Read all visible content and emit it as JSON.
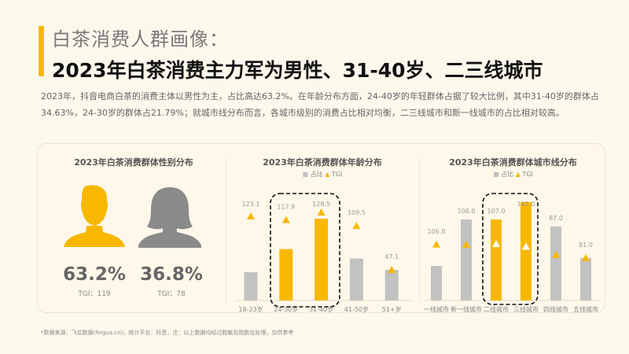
{
  "header": {
    "subtitle": "白茶消费人群画像：",
    "title": "2023年白茶消费主力军为男性、31-40岁、二三线城市",
    "description": "2023年，抖音电商白茶的消费主体以男性为主，占比高达63.2%。在年龄分布方面，24-40岁的年轻群体占据了较大比例，其中31-40岁的群体占34.63%，24-30岁的群体占21.79%；就城市线分布而言，各城市级别的消费占比相对均衡，二三线城市和新一线城市的占比相对较高。"
  },
  "colors": {
    "accent": "#f8b800",
    "gray_bar": "#c2c2c2",
    "female": "#8a8a8a"
  },
  "gender": {
    "title": "2023年白茶消费群体性别分布",
    "male": {
      "icon": "male-silhouette-icon",
      "percent": "63.2%",
      "tgi": "TGI：119"
    },
    "female": {
      "icon": "female-silhouette-icon",
      "percent": "36.8%",
      "tgi": "TGI：78"
    }
  },
  "chart_data": [
    {
      "type": "bar",
      "title": "2023年白茶消费群体年龄分布",
      "legend": [
        "占比",
        "TGI"
      ],
      "legend_placement": "top",
      "categories": [
        "18-23岁",
        "24-30岁",
        "31-40岁",
        "41-50岁",
        "51+岁"
      ],
      "series": [
        {
          "name": "占比",
          "values": [
            12.0,
            21.79,
            34.63,
            17.8,
            13.0
          ],
          "unit": "%"
        },
        {
          "name": "TGI",
          "values": [
            123.1,
            117.9,
            128.5,
            109.5,
            47.1
          ]
        }
      ],
      "highlighted": [
        "24-30岁",
        "31-40岁"
      ]
    },
    {
      "type": "bar",
      "title": "2023年白茶消费群体城市线分布",
      "legend": [
        "占比",
        "TGI"
      ],
      "legend_placement": "top",
      "categories": [
        "一线城市",
        "新一线城市",
        "二线城市",
        "三线城市",
        "四线城市",
        "五线城市"
      ],
      "series": [
        {
          "name": "占比",
          "values": [
            8.4,
            19.7,
            19.7,
            23.9,
            18.0,
            10.3
          ],
          "unit": "%"
        },
        {
          "name": "TGI",
          "values": [
            106.0,
            106.0,
            107.0,
            102.0,
            87.0,
            81.0
          ]
        }
      ],
      "highlighted": [
        "二线城市",
        "三线城市"
      ]
    }
  ],
  "footnote": "*数据来源：飞瓜数据(feigua.cn)，统计平台：抖音，注：以上数据均经过脱敏及指数化处理，仅供参考"
}
